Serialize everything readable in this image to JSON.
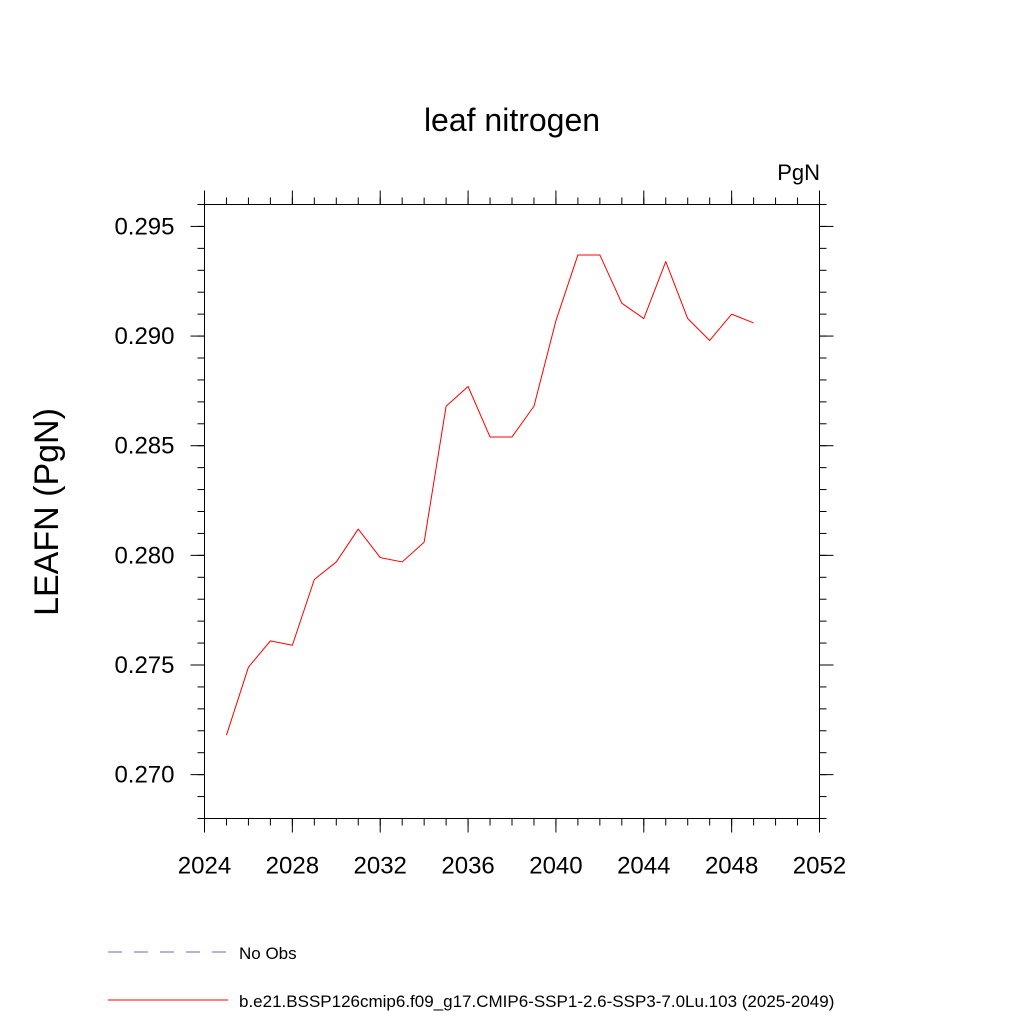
{
  "chart_data": {
    "type": "line",
    "title": "leaf nitrogen",
    "units_label": "PgN",
    "ylabel": "LEAFN  (PgN)",
    "xlabel": "",
    "xlim": [
      2024,
      2052
    ],
    "ylim": [
      0.268,
      0.296
    ],
    "x_ticks": [
      2024,
      2028,
      2032,
      2036,
      2040,
      2044,
      2048,
      2052
    ],
    "x_tick_labels": [
      "2024",
      "2028",
      "2032",
      "2036",
      "2040",
      "2044",
      "2048",
      "2052"
    ],
    "y_ticks": [
      0.27,
      0.275,
      0.28,
      0.285,
      0.29,
      0.295
    ],
    "y_tick_labels": [
      "0.270",
      "0.275",
      "0.280",
      "0.285",
      "0.290",
      "0.295"
    ],
    "grid": false,
    "legend_placement": "bottom",
    "series": [
      {
        "name": "b.e21.BSSP126cmip6.f09_g17.CMIP6-SSP1-2.6-SSP3-7.0Lu.103 (2025-2049)",
        "color": "#ff0000",
        "style": "solid",
        "x": [
          2025,
          2026,
          2027,
          2028,
          2029,
          2030,
          2031,
          2032,
          2033,
          2034,
          2035,
          2036,
          2037,
          2038,
          2039,
          2040,
          2041,
          2042,
          2043,
          2044,
          2045,
          2046,
          2047,
          2048,
          2049
        ],
        "y": [
          0.2718,
          0.2749,
          0.2761,
          0.2759,
          0.2789,
          0.2797,
          0.2812,
          0.2799,
          0.2797,
          0.2806,
          0.2868,
          0.2877,
          0.2854,
          0.2854,
          0.2868,
          0.2907,
          0.2937,
          0.2937,
          0.2915,
          0.2908,
          0.2934,
          0.2908,
          0.2898,
          0.291,
          0.2906
        ]
      }
    ],
    "legend": [
      {
        "label": "No Obs",
        "color": "#7a66b3",
        "style": "dashed"
      },
      {
        "label": "b.e21.BSSP126cmip6.f09_g17.CMIP6-SSP1-2.6-SSP3-7.0Lu.103 (2025-2049)",
        "color": "#ff0000",
        "style": "solid"
      }
    ]
  }
}
